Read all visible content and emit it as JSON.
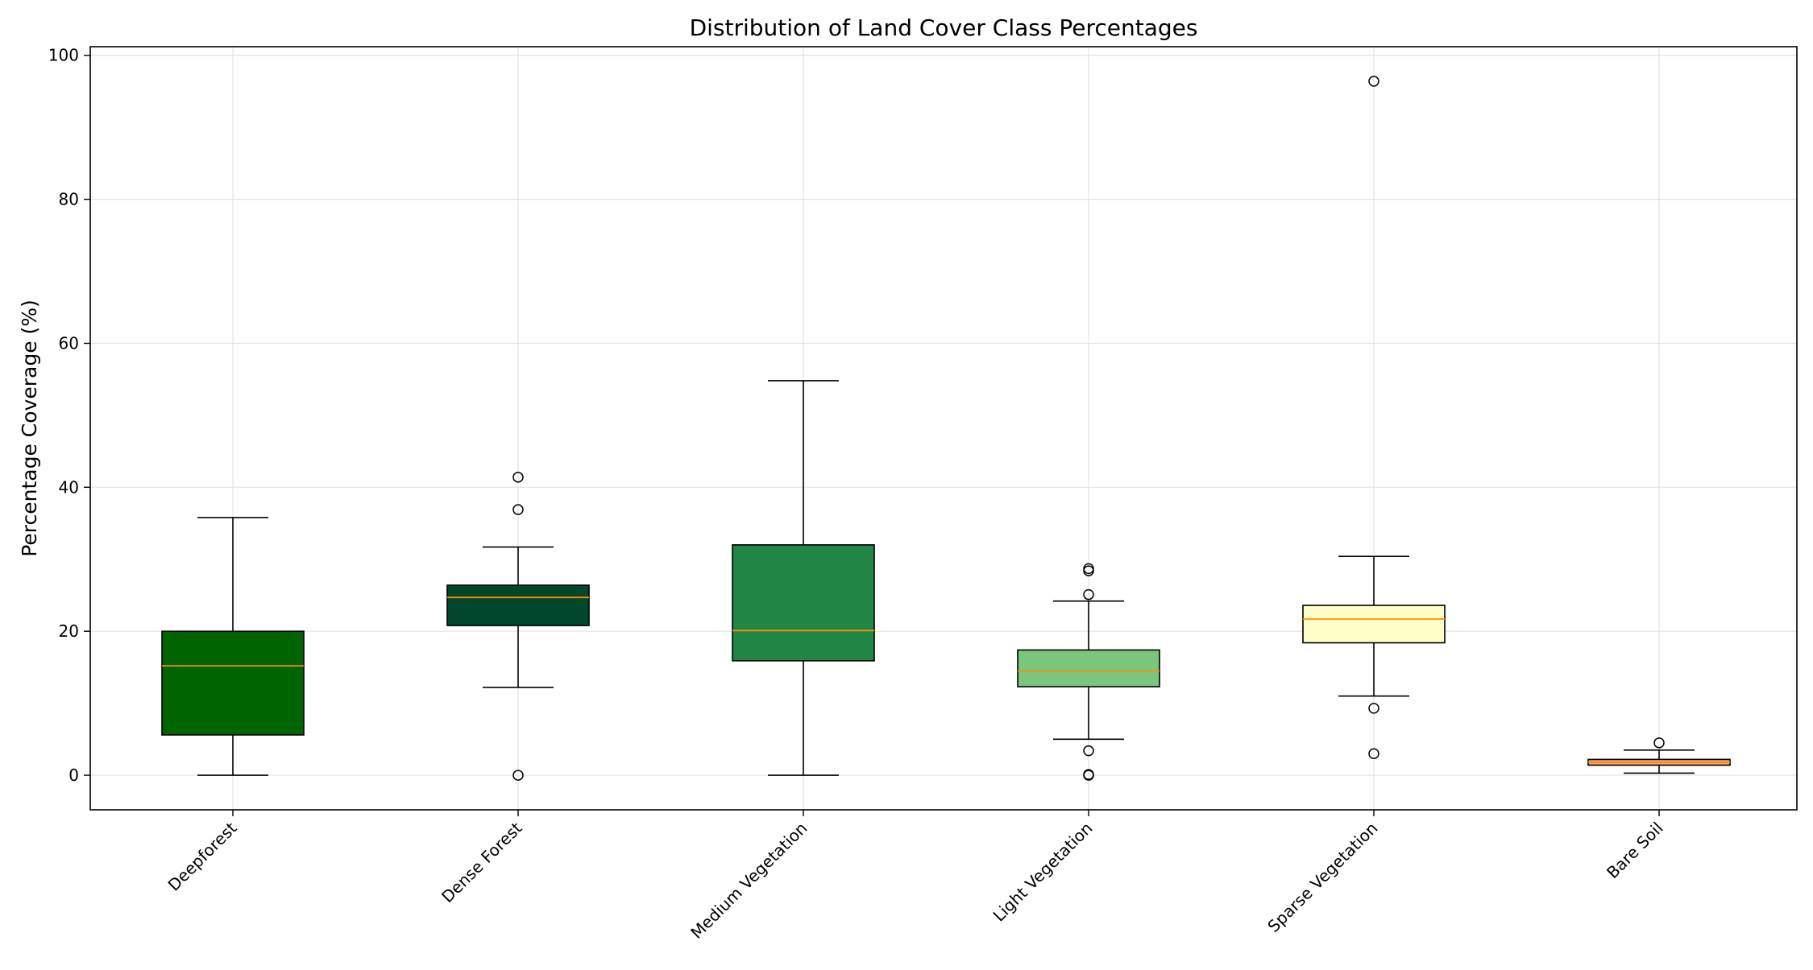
{
  "chart_data": {
    "type": "box",
    "title": "Distribution of Land Cover Class Percentages",
    "xlabel": "",
    "ylabel": "Percentage Coverage (%)",
    "ylim": [
      -4.8,
      101.2
    ],
    "yticks": [
      0,
      20,
      40,
      60,
      80,
      100
    ],
    "grid": true,
    "legend": "none",
    "categories": [
      "Deepforest",
      "Dense Forest",
      "Medium Vegetation",
      "Light Vegetation",
      "Sparse Vegetation",
      "Bare Soil"
    ],
    "boxes": [
      {
        "category": "Deepforest",
        "color": "#006400",
        "whisker_low": 0.0,
        "q1": 5.6,
        "median": 15.2,
        "q3": 20.0,
        "whisker_high": 35.8,
        "outliers": []
      },
      {
        "category": "Dense Forest",
        "color": "#00472B",
        "whisker_low": 12.2,
        "q1": 20.8,
        "median": 24.7,
        "q3": 26.4,
        "whisker_high": 31.7,
        "outliers": [
          41.4,
          36.9,
          0.0
        ]
      },
      {
        "category": "Medium Vegetation",
        "color": "#228646",
        "whisker_low": 0.0,
        "q1": 15.9,
        "median": 20.1,
        "q3": 32.0,
        "whisker_high": 54.8,
        "outliers": []
      },
      {
        "category": "Light Vegetation",
        "color": "#7BC67D",
        "whisker_low": 5.0,
        "q1": 12.3,
        "median": 14.5,
        "q3": 17.4,
        "whisker_high": 24.2,
        "outliers": [
          28.7,
          28.4,
          25.1,
          3.4,
          0.1,
          0.0
        ]
      },
      {
        "category": "Sparse Vegetation",
        "color": "#FFFDC8",
        "whisker_low": 11.0,
        "q1": 18.4,
        "median": 21.7,
        "q3": 23.6,
        "whisker_high": 30.4,
        "outliers": [
          96.4,
          9.3,
          3.0
        ]
      },
      {
        "category": "Bare Soil",
        "color": "#F5A55F",
        "whisker_low": 0.3,
        "q1": 1.4,
        "median": 1.8,
        "q3": 2.2,
        "whisker_high": 3.5,
        "outliers": [
          4.5
        ]
      }
    ],
    "median_color": "#FF8C00"
  }
}
